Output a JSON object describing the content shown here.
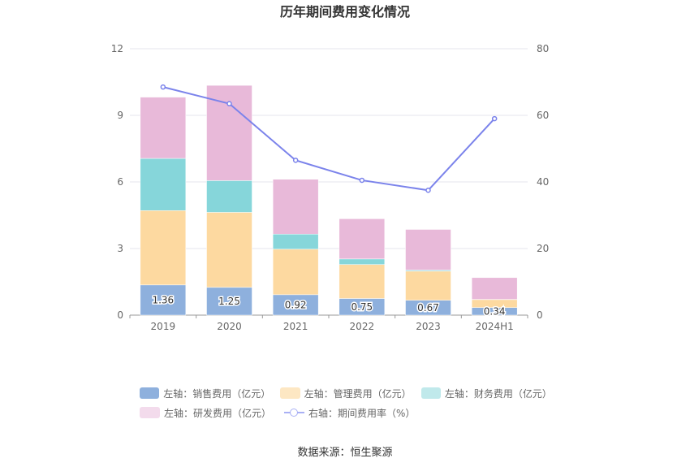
{
  "chart_data": {
    "type": "bar",
    "title": "历年期间费用变化情况",
    "categories": [
      "2019",
      "2020",
      "2021",
      "2022",
      "2023",
      "2024H1"
    ],
    "y_left": {
      "min": 0,
      "max": 12,
      "ticks": [
        "0",
        "3",
        "6",
        "9",
        "12"
      ]
    },
    "y_right": {
      "min": 0,
      "max": 80,
      "ticks": [
        "0",
        "20",
        "40",
        "60",
        "80"
      ]
    },
    "series": [
      {
        "name": "左轴：销售费用（亿元）",
        "axis": "left",
        "stack": true,
        "color": "#8eb0dd",
        "values": [
          1.36,
          1.25,
          0.92,
          0.75,
          0.67,
          0.34
        ],
        "labels": [
          "1.36",
          "1.25",
          "0.92",
          "0.75",
          "0.67",
          "0.34"
        ]
      },
      {
        "name": "左轴：管理费用（亿元）",
        "axis": "left",
        "stack": true,
        "color": "#fdd9a0",
        "values": [
          3.35,
          3.38,
          2.05,
          1.53,
          1.31,
          0.36
        ]
      },
      {
        "name": "左轴：财务费用（亿元）",
        "axis": "left",
        "stack": true,
        "color": "#86d6da",
        "values": [
          2.35,
          1.43,
          0.68,
          0.25,
          0.05,
          0.01
        ]
      },
      {
        "name": "左轴：研发费用（亿元）",
        "axis": "left",
        "stack": true,
        "color": "#e8b9d9",
        "values": [
          2.76,
          4.29,
          2.47,
          1.81,
          1.83,
          0.98
        ]
      },
      {
        "name": "右轴：期间费用率（%）",
        "axis": "right",
        "type": "line",
        "color": "#7b83eb",
        "values": [
          68.5,
          63.5,
          46.5,
          40.5,
          37.5,
          59
        ]
      }
    ],
    "legend_colors": [
      "#8eb0dd",
      "#fde7c3",
      "#c0e9eb",
      "#f3dbec"
    ],
    "source": "数据来源：恒生聚源"
  }
}
